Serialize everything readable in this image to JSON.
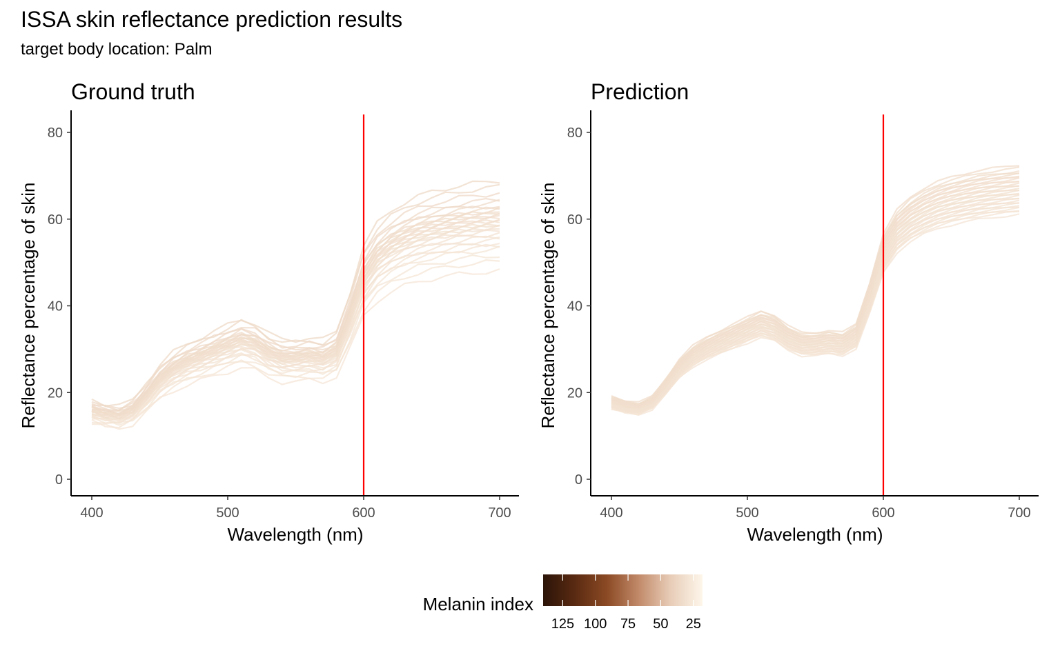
{
  "title": "ISSA skin reflectance prediction results",
  "subtitle": "target body location: Palm",
  "colors": {
    "reference_line": "#ff0000",
    "axis": "#000000",
    "tick_text": "#4d4d4d",
    "melanin_gradient": [
      "#2b1408",
      "#5a2a12",
      "#8b4a24",
      "#c28a6a",
      "#e8cdb8",
      "#fdf6ea"
    ]
  },
  "chart_data": [
    {
      "type": "line",
      "title": "Ground truth",
      "xlabel": "Wavelength (nm)",
      "ylabel": "Reflectance percentage of skin",
      "xlim": [
        385,
        715
      ],
      "ylim": [
        -4,
        84
      ],
      "xticks": [
        400,
        500,
        600,
        700
      ],
      "yticks": [
        0,
        20,
        40,
        60,
        80
      ],
      "reference_line_x": 600,
      "grid": false,
      "x": [
        400,
        410,
        420,
        430,
        440,
        450,
        460,
        470,
        480,
        490,
        500,
        510,
        520,
        530,
        540,
        550,
        560,
        570,
        580,
        590,
        600,
        610,
        620,
        630,
        640,
        650,
        660,
        670,
        680,
        690,
        700
      ],
      "series_profile": [
        0.19,
        0.18,
        0.175,
        0.19,
        0.23,
        0.275,
        0.305,
        0.325,
        0.34,
        0.355,
        0.37,
        0.385,
        0.375,
        0.35,
        0.335,
        0.335,
        0.34,
        0.335,
        0.355,
        0.45,
        0.56,
        0.615,
        0.645,
        0.665,
        0.68,
        0.69,
        0.698,
        0.705,
        0.71,
        0.714,
        0.718
      ],
      "series_scales": [
        0.67,
        0.7,
        0.72,
        0.74,
        0.75,
        0.76,
        0.77,
        0.78,
        0.79,
        0.8,
        0.805,
        0.81,
        0.815,
        0.82,
        0.825,
        0.83,
        0.835,
        0.84,
        0.845,
        0.85,
        0.855,
        0.86,
        0.865,
        0.87,
        0.88,
        0.89,
        0.9,
        0.92,
        0.94,
        0.96
      ],
      "melanin_range": [
        24,
        32
      ]
    },
    {
      "type": "line",
      "title": "Prediction",
      "xlabel": "Wavelength (nm)",
      "ylabel": "Reflectance percentage of skin",
      "xlim": [
        385,
        715
      ],
      "ylim": [
        -4,
        84
      ],
      "xticks": [
        400,
        500,
        600,
        700
      ],
      "yticks": [
        0,
        20,
        40,
        60,
        80
      ],
      "reference_line_x": 600,
      "grid": false,
      "x": [
        400,
        410,
        420,
        430,
        440,
        450,
        460,
        470,
        480,
        490,
        500,
        510,
        520,
        530,
        540,
        550,
        560,
        570,
        580,
        590,
        600,
        610,
        620,
        630,
        640,
        650,
        660,
        670,
        680,
        690,
        700
      ],
      "series_profile": [
        0.19,
        0.18,
        0.175,
        0.19,
        0.23,
        0.275,
        0.305,
        0.325,
        0.34,
        0.355,
        0.37,
        0.385,
        0.375,
        0.35,
        0.335,
        0.335,
        0.34,
        0.335,
        0.355,
        0.45,
        0.56,
        0.615,
        0.645,
        0.665,
        0.68,
        0.69,
        0.698,
        0.705,
        0.71,
        0.714,
        0.718
      ],
      "series_scales": [
        0.85,
        0.86,
        0.865,
        0.87,
        0.875,
        0.88,
        0.885,
        0.89,
        0.895,
        0.9,
        0.905,
        0.91,
        0.915,
        0.92,
        0.925,
        0.93,
        0.935,
        0.94,
        0.945,
        0.95,
        0.955,
        0.96,
        0.965,
        0.97,
        0.975,
        0.98,
        0.985,
        0.99,
        1.0,
        1.01
      ],
      "melanin_range": [
        25,
        30
      ]
    }
  ],
  "legend": {
    "title": "Melanin index",
    "ticks": [
      "125",
      "100",
      "75",
      "50",
      "25"
    ],
    "tick_values": [
      125,
      100,
      75,
      50,
      25
    ],
    "range": [
      140,
      18
    ]
  }
}
